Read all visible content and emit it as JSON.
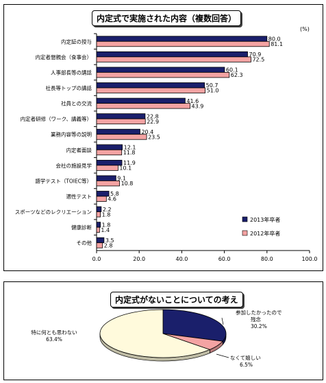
{
  "chart_data": [
    {
      "type": "bar",
      "orientation": "horizontal",
      "title": "内定式で実施された内容（複数回答）",
      "unit_label": "(%)",
      "categories": [
        "内定証の授与",
        "内定者懇親会（食事会）",
        "人事部長等の講話",
        "社長等トップの講話",
        "社員との交流",
        "内定者研修（ワーク、講義等）",
        "業務内容等の説明",
        "内定者面談",
        "会社の施設見学",
        "語学テスト（TOIEC等）",
        "適性テスト",
        "スポーツなどのレクリエーション",
        "健康診断",
        "その他"
      ],
      "series": [
        {
          "name": "2013年卒者",
          "color": "#1a1f6b",
          "values": [
            80.0,
            70.9,
            60.1,
            50.7,
            41.6,
            22.8,
            20.4,
            12.1,
            11.9,
            9.1,
            5.8,
            2.2,
            1.8,
            3.5
          ],
          "labels": [
            "80.0",
            "70.9",
            "60.1",
            "50.7",
            "41.6",
            "22.8",
            "20.4",
            "12.1",
            "11.9",
            "9.1",
            "5.8",
            "2.2",
            "1.8",
            "3.5"
          ]
        },
        {
          "name": "2012年卒者",
          "color": "#f4a3a3",
          "values": [
            81.1,
            72.5,
            62.3,
            51.0,
            43.9,
            22.9,
            23.5,
            11.8,
            10.1,
            10.8,
            4.6,
            1.8,
            1.4,
            2.8
          ],
          "labels": [
            "81.1",
            "72.5",
            "62.3",
            "51.0",
            "43.9",
            "22.9",
            "23.5",
            "11.8",
            "10.1",
            "10.8",
            "4.6",
            "1.8",
            "1.4",
            "2.8"
          ]
        }
      ],
      "xlim": [
        0,
        100
      ],
      "xticks": [
        "0.0",
        "20.0",
        "40.0",
        "60.0",
        "80.0",
        "100.0"
      ],
      "legend_position": "bottom-right",
      "grid": false
    },
    {
      "type": "pie",
      "title": "内定式がないことについての考え",
      "slices": [
        {
          "label_lines": [
            "参加したかったので",
            "残念"
          ],
          "pct_label": "30.2%",
          "value": 30.2,
          "color": "#1a1f6b"
        },
        {
          "label_lines": [
            "なくて嬉しい"
          ],
          "pct_label": "6.5%",
          "value": 6.5,
          "color": "#f4a3a3"
        },
        {
          "label_lines": [
            "特に何とも思わない"
          ],
          "pct_label": "63.4%",
          "value": 63.4,
          "color": "#fffadc"
        }
      ]
    }
  ]
}
